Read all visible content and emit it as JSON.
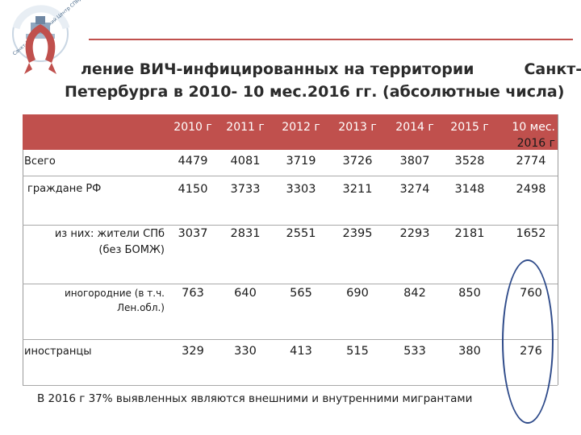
{
  "logo": {
    "name": "spb-aids-center-logo",
    "text": "Санкт-Петербургский Центр СПИД"
  },
  "title": {
    "line1": "ление ВИЧ-инфицированных на территории",
    "line1_tail": "Санкт-",
    "line2": "Петербурга в 2010- 10 мес.2016 гг. (абсолютные числа)"
  },
  "table": {
    "columns": [
      "2010 г",
      "2011 г",
      "2012 г",
      "2013 г",
      "2014 г",
      "2015 г",
      "10 мес.",
      "2016 г"
    ],
    "rows": [
      {
        "label": "Всего",
        "values": [
          "4479",
          "4081",
          "3719",
          "3726",
          "3807",
          "3528",
          "2774"
        ]
      },
      {
        "label": "граждане РФ",
        "values": [
          "4150",
          "3733",
          "3303",
          "3211",
          "3274",
          "3148",
          "2498"
        ]
      },
      {
        "label": "из них:  жители СПб",
        "label2": "(без БОМЖ)",
        "values": [
          "3037",
          "2831",
          "2551",
          "2395",
          "2293",
          "2181",
          "1652"
        ]
      },
      {
        "label": "иногородние (в т.ч.",
        "label2": "Лен.обл.)",
        "values": [
          "763",
          "640",
          "565",
          "690",
          "842",
          "850",
          "760"
        ]
      },
      {
        "label": "иностранцы",
        "values": [
          "329",
          "330",
          "413",
          "515",
          "533",
          "380",
          "276"
        ]
      }
    ]
  },
  "footnote": "В 2016 г 37% выявленных являются внешними и внутренними мигрантами",
  "colors": {
    "header": "#c0504d",
    "ellipse": "#2f4b8a"
  }
}
